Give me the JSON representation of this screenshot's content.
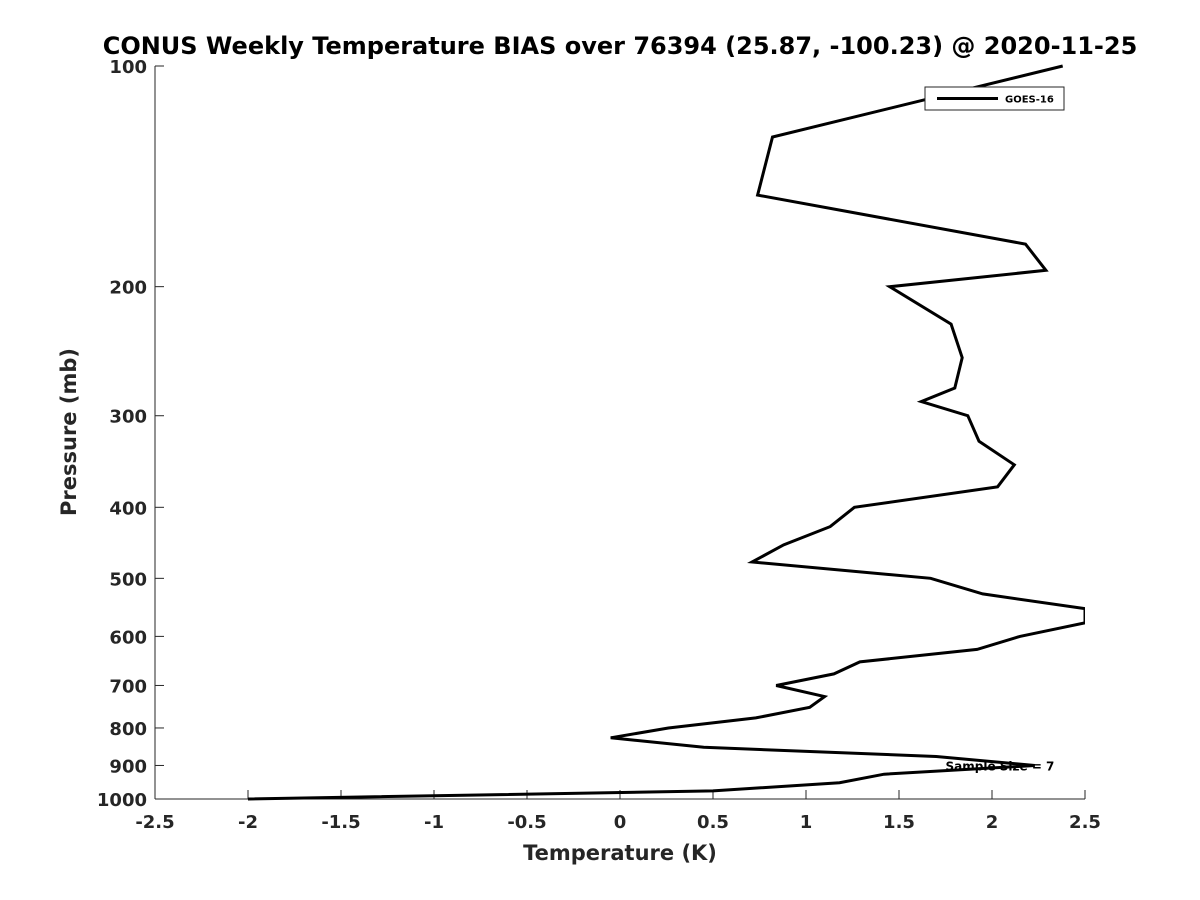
{
  "chart_data": {
    "type": "line",
    "title": "CONUS Weekly Temperature BIAS over 76394 (25.87, -100.23) @ 2020-11-25",
    "xlabel": "Temperature (K)",
    "ylabel": "Pressure (mb)",
    "xlim": [
      -2.5,
      2.5
    ],
    "ylim": [
      100,
      1000
    ],
    "y_scale": "log",
    "y_reversed": true,
    "grid": false,
    "legend_position": "top-right",
    "x_ticks": [
      -2.5,
      -2,
      -1.5,
      -1,
      -0.5,
      0,
      0.5,
      1,
      1.5,
      2,
      2.5
    ],
    "x_tick_labels": [
      "-2.5",
      "-2",
      "-1.5",
      "-1",
      "-0.5",
      "0",
      "0.5",
      "1",
      "1.5",
      "2",
      "2.5"
    ],
    "y_ticks": [
      100,
      200,
      300,
      400,
      500,
      600,
      700,
      800,
      900,
      1000
    ],
    "y_tick_labels": [
      "100",
      "200",
      "300",
      "400",
      "500",
      "600",
      "700",
      "800",
      "900",
      "1000"
    ],
    "series": [
      {
        "name": "GOES-16",
        "color": "#000000",
        "x": [
          2.38,
          0.82,
          0.74,
          2.18,
          2.29,
          1.45,
          1.78,
          1.84,
          1.8,
          1.62,
          1.87,
          1.93,
          2.12,
          2.03,
          1.26,
          1.13,
          0.88,
          0.71,
          1.67,
          1.95,
          2.5,
          2.5,
          2.15,
          1.92,
          1.29,
          1.15,
          0.84,
          1.1,
          1.02,
          0.73,
          0.26,
          -0.05,
          0.45,
          1.7,
          2.23,
          1.42,
          1.18,
          0.5,
          -2.0
        ],
        "y": [
          100,
          125,
          150,
          175,
          190,
          200,
          225,
          250,
          275,
          287,
          300,
          325,
          350,
          375,
          400,
          425,
          450,
          475,
          500,
          525,
          550,
          575,
          600,
          625,
          650,
          675,
          700,
          725,
          750,
          775,
          800,
          825,
          850,
          875,
          900,
          925,
          950,
          975,
          1000
        ]
      }
    ],
    "annotations": [
      {
        "text": "Sample Size = 7",
        "x": 1.75,
        "y": 900
      }
    ]
  }
}
